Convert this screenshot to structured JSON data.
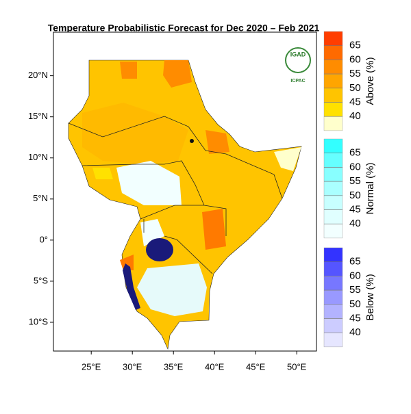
{
  "title": "Temperature Probabilistic Forecast for Dec 2020 – Feb 2021",
  "map": {
    "lonlim": [
      20.4,
      52.4
    ],
    "latlim": [
      -13.5,
      25.3
    ],
    "lat_ticks": [
      {
        "value": 20,
        "label": "20°N"
      },
      {
        "value": 15,
        "label": "15°N"
      },
      {
        "value": 10,
        "label": "10°N"
      },
      {
        "value": 5,
        "label": "5°N"
      },
      {
        "value": 0,
        "label": "0°"
      },
      {
        "value": -5,
        "label": "5°S"
      },
      {
        "value": -10,
        "label": "10°S"
      }
    ],
    "lon_ticks": [
      {
        "value": 25,
        "label": "25°E"
      },
      {
        "value": 30,
        "label": "30°E"
      },
      {
        "value": 35,
        "label": "35°E"
      },
      {
        "value": 40,
        "label": "40°E"
      },
      {
        "value": 45,
        "label": "45°E"
      },
      {
        "value": 50,
        "label": "50°E"
      }
    ]
  },
  "logo": {
    "name": "IGAD",
    "org": "ICPAC"
  },
  "legend": [
    {
      "title": "Above (%)",
      "levels": [
        65,
        60,
        55,
        50,
        45,
        40
      ],
      "colors": [
        "#ff3d00",
        "#ff6a00",
        "#ff8c00",
        "#ffa500",
        "#ffc400",
        "#ffe100",
        "#ffffcc"
      ]
    },
    {
      "title": "Normal (%)",
      "levels": [
        65,
        60,
        55,
        50,
        45,
        40
      ],
      "colors": [
        "#33ffff",
        "#66ffff",
        "#88ffff",
        "#aaffff",
        "#c8ffff",
        "#e0ffff",
        "#f2ffff"
      ]
    },
    {
      "title": "Below (%)",
      "levels": [
        65,
        60,
        55,
        50,
        45,
        40
      ],
      "colors": [
        "#3333ff",
        "#5555ff",
        "#7777ff",
        "#9999ff",
        "#b3b3ff",
        "#ccccff",
        "#e6e6ff"
      ]
    }
  ]
}
